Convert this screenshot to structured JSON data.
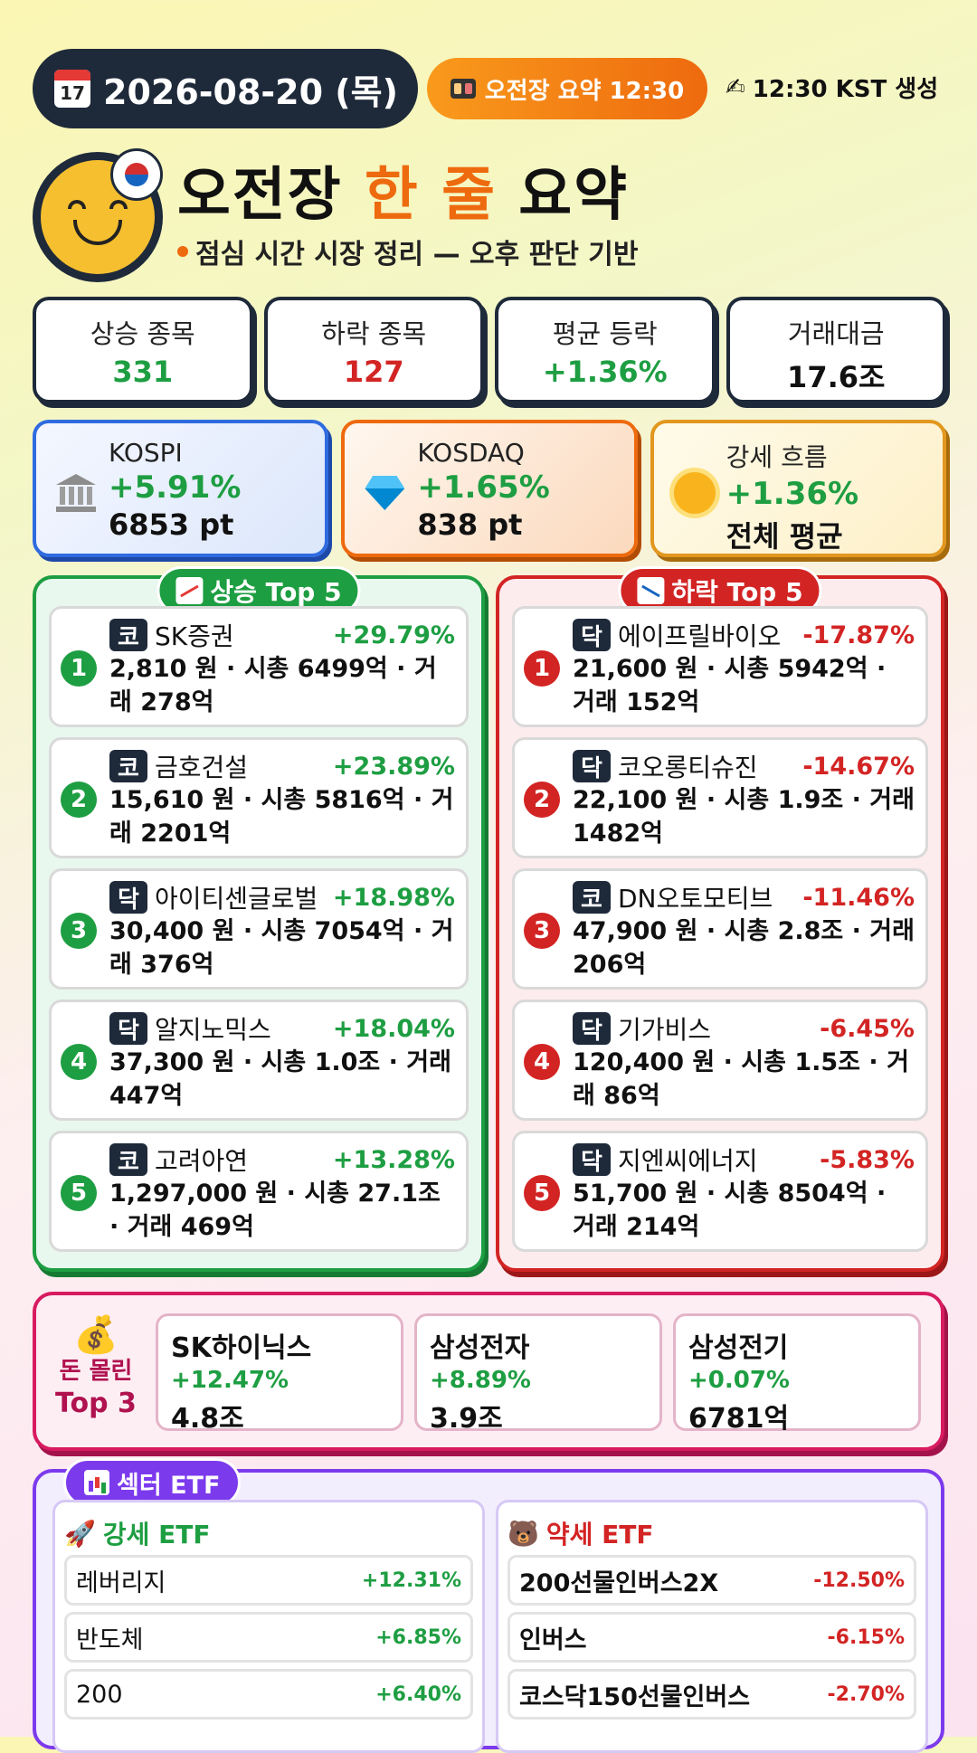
{
  "header": {
    "date": "2026-08-20 (목)",
    "calendar_day": "17",
    "session_label": "오전장 요약 12:30",
    "generated": "12:30 KST 생성"
  },
  "title": {
    "part1": "오전장",
    "highlight": "한 줄",
    "part2": "요약",
    "subtitle": "점심 시간 시장 정리 — 오후 판단 기반"
  },
  "stats": [
    {
      "label": "상승 종목",
      "value": "331",
      "tone": "green"
    },
    {
      "label": "하락 종목",
      "value": "127",
      "tone": "red"
    },
    {
      "label": "평균 등락",
      "value": "+1.36%",
      "tone": "green"
    },
    {
      "label": "거래대금",
      "value": "17.6조",
      "tone": "dark"
    }
  ],
  "indices": {
    "kospi": {
      "name": "KOSPI",
      "change": "+5.91%",
      "points": "6853 pt",
      "icon": "bank-icon"
    },
    "kosdaq": {
      "name": "KOSDAQ",
      "change": "+1.65%",
      "points": "838 pt",
      "icon": "gem-icon"
    },
    "strong": {
      "name": "강세 흐름",
      "change": "+1.36%",
      "points": "전체 평균",
      "icon": "sun-icon"
    }
  },
  "gainers": {
    "title": "상승 Top 5",
    "items": [
      {
        "rank": "1",
        "market": "코",
        "name": "SK증권",
        "change": "+29.79%",
        "detail": "2,810 원 · 시총 6499억 · 거래 278억"
      },
      {
        "rank": "2",
        "market": "코",
        "name": "금호건설",
        "change": "+23.89%",
        "detail": "15,610 원 · 시총 5816억 · 거래 2201억"
      },
      {
        "rank": "3",
        "market": "닥",
        "name": "아이티센글로벌",
        "change": "+18.98%",
        "detail": "30,400 원 · 시총 7054억 · 거래 376억"
      },
      {
        "rank": "4",
        "market": "닥",
        "name": "알지노믹스",
        "change": "+18.04%",
        "detail": "37,300 원 · 시총 1.0조 · 거래 447억"
      },
      {
        "rank": "5",
        "market": "코",
        "name": "고려아연",
        "change": "+13.28%",
        "detail": "1,297,000 원 · 시총 27.1조 · 거래 469억"
      }
    ]
  },
  "losers": {
    "title": "하락 Top 5",
    "items": [
      {
        "rank": "1",
        "market": "닥",
        "name": "에이프릴바이오",
        "change": "-17.87%",
        "detail": "21,600 원 · 시총 5942억 · 거래 152억"
      },
      {
        "rank": "2",
        "market": "닥",
        "name": "코오롱티슈진",
        "change": "-14.67%",
        "detail": "22,100 원 · 시총 1.9조 · 거래 1482억"
      },
      {
        "rank": "3",
        "market": "코",
        "name": "DN오토모티브",
        "change": "-11.46%",
        "detail": "47,900 원 · 시총 2.8조 · 거래 206억"
      },
      {
        "rank": "4",
        "market": "닥",
        "name": "기가비스",
        "change": "-6.45%",
        "detail": "120,400 원 · 시총 1.5조 · 거래 86억"
      },
      {
        "rank": "5",
        "market": "닥",
        "name": "지엔씨에너지",
        "change": "-5.83%",
        "detail": "51,700 원 · 시총 8504억 · 거래 214억"
      }
    ]
  },
  "money": {
    "label1": "돈 몰린",
    "label2": "Top 3",
    "items": [
      {
        "name": "SK하이닉스",
        "change": "+12.47%",
        "amount": "4.8조"
      },
      {
        "name": "삼성전자",
        "change": "+8.89%",
        "amount": "3.9조"
      },
      {
        "name": "삼성전기",
        "change": "+0.07%",
        "amount": "6781억"
      }
    ]
  },
  "etf": {
    "title": "섹터 ETF",
    "strong": {
      "title": "강세 ETF",
      "items": [
        {
          "name": "레버리지",
          "change": "+12.31%"
        },
        {
          "name": "반도체",
          "change": "+6.85%"
        },
        {
          "name": "200",
          "change": "+6.40%"
        }
      ]
    },
    "weak": {
      "title": "약세 ETF",
      "items": [
        {
          "name": "200선물인버스2X",
          "change": "-12.50%"
        },
        {
          "name": "인버스",
          "change": "-6.15%"
        },
        {
          "name": "코스닥150선물인버스",
          "change": "-2.70%"
        }
      ]
    }
  }
}
